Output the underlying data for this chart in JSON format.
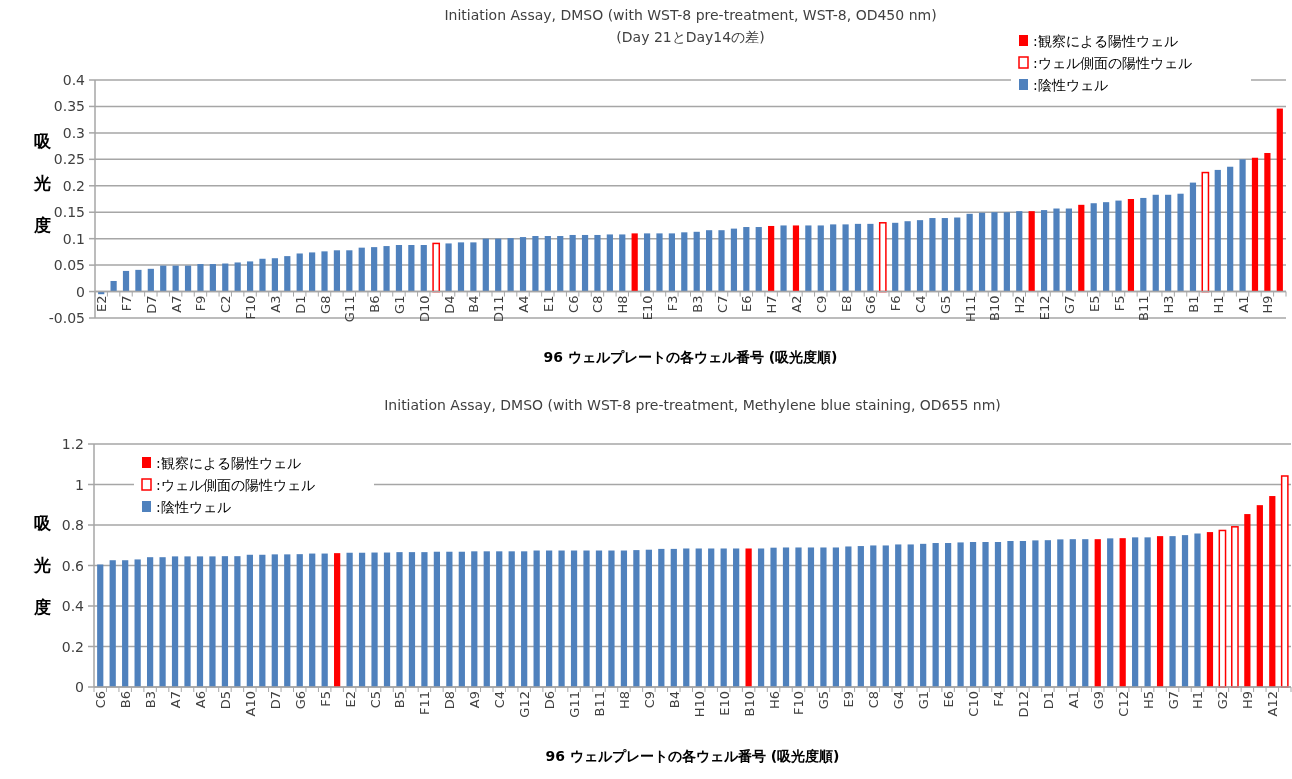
{
  "chart_data": [
    {
      "type": "bar",
      "title": "Initiation Assay, DMSO (with WST-8 pre-treatment, WST-8, OD450 nm)",
      "subtitle": "(Day 21とDay14の差)",
      "xlabel": "96 ウェルプレートの各ウェル番号 (吸光度順)",
      "ylabel": "吸光度",
      "categories": [
        "E2",
        null,
        "F7",
        null,
        "D7",
        null,
        "A7",
        null,
        "F9",
        null,
        "C2",
        null,
        "F10",
        null,
        "A3",
        null,
        "D1",
        null,
        "G8",
        null,
        "G11",
        null,
        "B6",
        null,
        "G1",
        null,
        "D10",
        null,
        "D4",
        null,
        "B4",
        null,
        "D11",
        null,
        "A4",
        null,
        "E1",
        null,
        "C6",
        null,
        "C8",
        null,
        "H8",
        null,
        "E10",
        null,
        "F3",
        null,
        "B3",
        null,
        "C7",
        null,
        "E6",
        null,
        "H7",
        null,
        "A2",
        null,
        "C9",
        null,
        "E8",
        null,
        "G6",
        null,
        "F6",
        null,
        "C4",
        null,
        "G5",
        null,
        "H11",
        null,
        "B10",
        null,
        "H2",
        null,
        "E12",
        null,
        "G7",
        null,
        "E5",
        null,
        "F5",
        null,
        "B11",
        null,
        "H3",
        null,
        "B1",
        null,
        "H1",
        null,
        "A1",
        null,
        "H9",
        null
      ],
      "series": [
        {
          "name": ":観察による陽性ウェル",
          "color": "#ff0000",
          "values": [
            null,
            null,
            null,
            null,
            null,
            null,
            null,
            null,
            null,
            null,
            null,
            null,
            null,
            null,
            null,
            null,
            null,
            null,
            null,
            null,
            null,
            null,
            null,
            null,
            null,
            null,
            null,
            null,
            null,
            null,
            null,
            null,
            null,
            null,
            null,
            null,
            null,
            null,
            null,
            null,
            null,
            null,
            null,
            0.11,
            null,
            null,
            null,
            null,
            null,
            null,
            null,
            null,
            null,
            null,
            0.124,
            null,
            0.125,
            null,
            null,
            null,
            null,
            null,
            null,
            null,
            null,
            null,
            null,
            null,
            null,
            null,
            null,
            null,
            null,
            null,
            null,
            0.152,
            null,
            null,
            null,
            0.164,
            null,
            null,
            null,
            0.175,
            null,
            null,
            null,
            null,
            null,
            null,
            null,
            null,
            null,
            0.253,
            0.262,
            0.346
          ]
        },
        {
          "name": ":ウェル側面の陽性ウェル",
          "color": "#ff0000",
          "values": [
            null,
            null,
            null,
            null,
            null,
            null,
            null,
            null,
            null,
            null,
            null,
            null,
            null,
            null,
            null,
            null,
            null,
            null,
            null,
            null,
            null,
            null,
            null,
            null,
            null,
            null,
            null,
            0.091,
            null,
            null,
            null,
            null,
            null,
            null,
            null,
            null,
            null,
            null,
            null,
            null,
            null,
            null,
            null,
            null,
            null,
            null,
            null,
            null,
            null,
            null,
            null,
            null,
            null,
            null,
            null,
            null,
            null,
            null,
            null,
            null,
            null,
            null,
            null,
            0.13,
            null,
            null,
            null,
            null,
            null,
            null,
            null,
            null,
            null,
            null,
            null,
            null,
            null,
            null,
            null,
            null,
            null,
            null,
            null,
            null,
            null,
            null,
            null,
            null,
            null,
            0.225,
            null,
            null,
            null,
            null,
            null,
            null
          ]
        },
        {
          "name": ":陰性ウェル",
          "color": "#4f81bd",
          "values": [
            -0.005,
            0.02,
            0.039,
            0.041,
            0.043,
            0.049,
            0.049,
            0.049,
            0.052,
            0.052,
            0.053,
            0.055,
            0.057,
            0.062,
            0.063,
            0.067,
            0.072,
            0.074,
            0.076,
            0.078,
            0.078,
            0.083,
            0.084,
            0.086,
            0.088,
            0.088,
            0.088,
            null,
            0.091,
            0.093,
            0.093,
            0.1,
            0.1,
            0.101,
            0.103,
            0.105,
            0.105,
            0.105,
            0.107,
            0.107,
            0.107,
            0.108,
            0.108,
            null,
            0.11,
            0.11,
            0.11,
            0.112,
            0.113,
            0.116,
            0.116,
            0.119,
            0.122,
            0.122,
            null,
            0.125,
            null,
            0.125,
            0.125,
            0.127,
            0.127,
            0.128,
            0.128,
            null,
            0.13,
            0.133,
            0.135,
            0.139,
            0.139,
            0.14,
            0.147,
            0.149,
            0.15,
            0.15,
            0.152,
            null,
            0.154,
            0.157,
            0.157,
            null,
            0.167,
            0.169,
            0.172,
            null,
            0.177,
            0.183,
            0.183,
            0.185,
            0.206,
            null,
            0.23,
            0.236,
            0.25,
            null,
            null,
            null
          ]
        }
      ],
      "stacked": true,
      "ylim": [
        -0.05,
        0.4
      ],
      "yticks": [
        -0.05,
        0,
        0.05,
        0.1,
        0.15,
        0.2,
        0.25,
        0.3,
        0.35,
        0.4
      ],
      "grid": "y",
      "legend": "top right"
    },
    {
      "type": "bar",
      "title": "Initiation Assay, DMSO (with WST-8 pre-treatment, Methylene blue staining, OD655 nm)",
      "xlabel": "96 ウェルプレートの各ウェル番号 (吸光度順)",
      "ylabel": "吸光度",
      "categories": [
        "C6",
        null,
        "B6",
        null,
        "B3",
        null,
        "A7",
        null,
        "A6",
        null,
        "D5",
        null,
        "A10",
        null,
        "D7",
        null,
        "G6",
        null,
        "F5",
        null,
        "E2",
        null,
        "C5",
        null,
        "B5",
        null,
        "F11",
        null,
        "D8",
        null,
        "A9",
        null,
        "C4",
        null,
        "G12",
        null,
        "D6",
        null,
        "G11",
        null,
        "B11",
        null,
        "H8",
        null,
        "C9",
        null,
        "B4",
        null,
        "H10",
        null,
        "E10",
        null,
        "B10",
        null,
        "H6",
        null,
        "F10",
        null,
        "G5",
        null,
        "E9",
        null,
        "C8",
        null,
        "G4",
        null,
        "G1",
        null,
        "E6",
        null,
        "C10",
        null,
        "F4",
        null,
        "D12",
        null,
        "D1",
        null,
        "A1",
        null,
        "G9",
        null,
        "C12",
        null,
        "H5",
        null,
        "G7",
        null,
        "H1",
        null,
        "G2",
        null,
        "H9",
        null,
        "A12",
        null
      ],
      "series": [
        {
          "name": ":観察による陽性ウェル",
          "color": "#ff0000",
          "values": [
            null,
            null,
            null,
            null,
            null,
            null,
            null,
            null,
            null,
            null,
            null,
            null,
            null,
            null,
            null,
            null,
            null,
            null,
            null,
            0.661,
            null,
            null,
            null,
            null,
            null,
            null,
            null,
            null,
            null,
            null,
            null,
            null,
            null,
            null,
            null,
            null,
            null,
            null,
            null,
            null,
            null,
            null,
            null,
            null,
            null,
            null,
            null,
            null,
            null,
            null,
            null,
            null,
            0.684,
            null,
            null,
            null,
            null,
            null,
            null,
            null,
            null,
            null,
            null,
            null,
            null,
            null,
            null,
            null,
            null,
            null,
            null,
            null,
            null,
            null,
            null,
            null,
            null,
            null,
            null,
            null,
            0.73,
            null,
            0.735,
            null,
            null,
            0.745,
            null,
            null,
            null,
            0.765,
            null,
            null,
            0.854,
            0.898,
            0.943,
            null
          ]
        },
        {
          "name": ":ウェル側面の陽性ウェル",
          "color": "#ff0000",
          "values": [
            null,
            null,
            null,
            null,
            null,
            null,
            null,
            null,
            null,
            null,
            null,
            null,
            null,
            null,
            null,
            null,
            null,
            null,
            null,
            null,
            null,
            null,
            null,
            null,
            null,
            null,
            null,
            null,
            null,
            null,
            null,
            null,
            null,
            null,
            null,
            null,
            null,
            null,
            null,
            null,
            null,
            null,
            null,
            null,
            null,
            null,
            null,
            null,
            null,
            null,
            null,
            null,
            null,
            null,
            null,
            null,
            null,
            null,
            null,
            null,
            null,
            null,
            null,
            null,
            null,
            null,
            null,
            null,
            null,
            null,
            null,
            null,
            null,
            null,
            null,
            null,
            null,
            null,
            null,
            null,
            null,
            null,
            null,
            null,
            null,
            null,
            null,
            null,
            null,
            null,
            0.773,
            0.791,
            null,
            null,
            null,
            1.042
          ]
        },
        {
          "name": ":陰性ウェル",
          "color": "#4f81bd",
          "values": [
            0.605,
            0.626,
            0.626,
            0.63,
            0.641,
            0.641,
            0.645,
            0.645,
            0.645,
            0.645,
            0.646,
            0.646,
            0.653,
            0.653,
            0.655,
            0.655,
            0.656,
            0.659,
            0.659,
            null,
            0.663,
            0.663,
            0.664,
            0.664,
            0.666,
            0.666,
            0.666,
            0.668,
            0.668,
            0.668,
            0.67,
            0.67,
            0.67,
            0.67,
            0.67,
            0.674,
            0.674,
            0.674,
            0.674,
            0.674,
            0.674,
            0.674,
            0.674,
            0.676,
            0.678,
            0.682,
            0.682,
            0.684,
            0.684,
            0.684,
            0.684,
            0.684,
            null,
            0.684,
            0.688,
            0.689,
            0.689,
            0.689,
            0.689,
            0.689,
            0.694,
            0.696,
            0.699,
            0.699,
            0.704,
            0.704,
            0.707,
            0.711,
            0.711,
            0.714,
            0.716,
            0.716,
            0.716,
            0.721,
            0.721,
            0.724,
            0.725,
            0.729,
            0.73,
            0.73,
            null,
            0.734,
            null,
            0.739,
            0.739,
            null,
            0.745,
            0.75,
            0.758,
            null,
            null,
            null,
            null,
            null,
            null,
            null
          ]
        }
      ],
      "stacked": true,
      "ylim": [
        0,
        1.2
      ],
      "yticks": [
        0,
        0.2,
        0.4,
        0.6,
        0.8,
        1,
        1.2
      ],
      "grid": "y",
      "legend": "top left"
    }
  ]
}
